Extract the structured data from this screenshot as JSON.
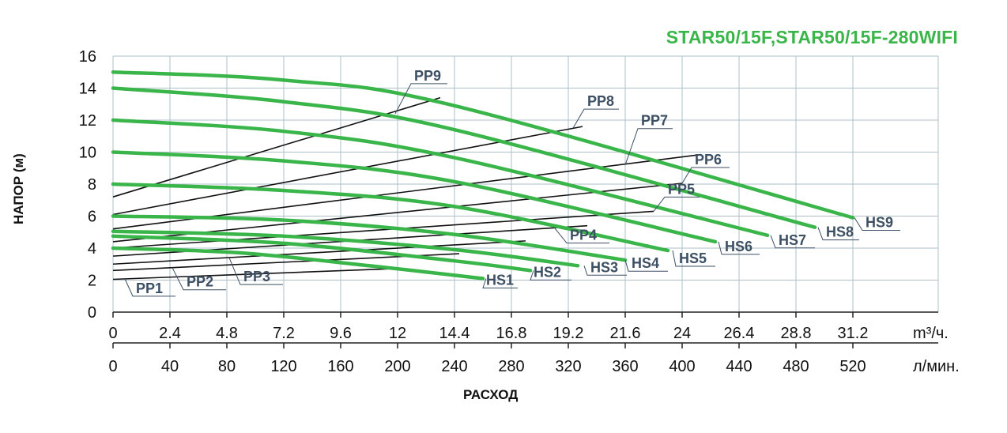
{
  "chart_data": {
    "type": "line",
    "title": "STAR50/15F,STAR50/15F-280WIFI",
    "xlabel": "РАСХОД",
    "ylabel": "НАПОР (м)",
    "x_unit_primary": "m³/ч.",
    "x_unit_secondary": "л/мин.",
    "xlim": [
      0,
      34.8
    ],
    "ylim": [
      0,
      16
    ],
    "x_ticks": [
      "0",
      "2.4",
      "4.8",
      "7.2",
      "9.6",
      "12",
      "14.4",
      "16.8",
      "19.2",
      "21.6",
      "24",
      "26.4",
      "28.8",
      "31.2"
    ],
    "x_ticks_secondary": [
      "0",
      "40",
      "80",
      "120",
      "160",
      "200",
      "240",
      "280",
      "320",
      "360",
      "400",
      "440",
      "480",
      "520"
    ],
    "y_ticks": [
      "0",
      "2",
      "4",
      "6",
      "8",
      "10",
      "12",
      "14",
      "16"
    ],
    "grid": true,
    "colors": {
      "pump_curve": "#3ab54a",
      "system_curve": "#111111",
      "label": "#3d4f63",
      "grid": "#aebfc8"
    },
    "series": [
      {
        "name": "HS1",
        "kind": "pump",
        "x": [
          0,
          5.4,
          10.8,
          15.6
        ],
        "y": [
          4.0,
          3.7,
          2.9,
          2.1
        ]
      },
      {
        "name": "HS2",
        "kind": "pump",
        "x": [
          0,
          7.2,
          14.4,
          17.6
        ],
        "y": [
          4.75,
          4.3,
          3.2,
          2.6
        ]
      },
      {
        "name": "HS3",
        "kind": "pump",
        "x": [
          0,
          7.2,
          14.4,
          19.6
        ],
        "y": [
          5.05,
          4.75,
          3.9,
          2.9
        ]
      },
      {
        "name": "HS4",
        "kind": "pump",
        "x": [
          0,
          7.2,
          14.4,
          21.6
        ],
        "y": [
          6.0,
          5.75,
          4.85,
          3.25
        ]
      },
      {
        "name": "HS5",
        "kind": "pump",
        "x": [
          0,
          7.2,
          14.4,
          23.4
        ],
        "y": [
          8.0,
          7.6,
          6.6,
          3.85
        ]
      },
      {
        "name": "HS6",
        "kind": "pump",
        "x": [
          0,
          7.2,
          14.4,
          25.4
        ],
        "y": [
          10.0,
          9.45,
          8.15,
          4.4
        ]
      },
      {
        "name": "HS7",
        "kind": "pump",
        "x": [
          0,
          7.2,
          14.4,
          27.6
        ],
        "y": [
          12.0,
          11.3,
          9.65,
          4.8
        ]
      },
      {
        "name": "HS8",
        "kind": "pump",
        "x": [
          0,
          7.2,
          14.4,
          29.6
        ],
        "y": [
          14.0,
          13.15,
          11.4,
          5.3
        ]
      },
      {
        "name": "HS9",
        "kind": "pump",
        "x": [
          0,
          7.2,
          14.4,
          31.2
        ],
        "y": [
          15.0,
          14.5,
          12.9,
          5.9
        ]
      },
      {
        "name": "PP1",
        "kind": "system",
        "x": [
          0,
          11.6
        ],
        "y": [
          2.05,
          2.7
        ]
      },
      {
        "name": "PP2",
        "kind": "system",
        "x": [
          0,
          14.6
        ],
        "y": [
          2.6,
          3.65
        ]
      },
      {
        "name": "PP3",
        "kind": "system",
        "x": [
          0,
          17.4
        ],
        "y": [
          3.0,
          4.45
        ]
      },
      {
        "name": "PP4",
        "kind": "system",
        "x": [
          0,
          20.0
        ],
        "y": [
          3.5,
          5.4
        ]
      },
      {
        "name": "PP5",
        "kind": "system",
        "x": [
          0,
          22.8
        ],
        "y": [
          4.0,
          6.3
        ]
      },
      {
        "name": "PP6",
        "kind": "system",
        "x": [
          0,
          24.0
        ],
        "y": [
          4.4,
          8.05
        ]
      },
      {
        "name": "PP7",
        "kind": "system",
        "x": [
          0,
          24.8
        ],
        "y": [
          5.2,
          9.85
        ]
      },
      {
        "name": "PP8",
        "kind": "system",
        "x": [
          0,
          19.8
        ],
        "y": [
          6.1,
          11.6
        ]
      },
      {
        "name": "PP9",
        "kind": "system",
        "x": [
          0,
          13.8
        ],
        "y": [
          7.2,
          13.4
        ]
      }
    ],
    "annotations": [
      {
        "text": "HS1",
        "target": "HS1",
        "at": [
          15.6,
          2.1
        ]
      },
      {
        "text": "HS2",
        "target": "HS2",
        "at": [
          17.6,
          2.6
        ]
      },
      {
        "text": "HS3",
        "target": "HS3",
        "at": [
          19.6,
          2.9
        ]
      },
      {
        "text": "HS4",
        "target": "HS4",
        "at": [
          21.6,
          3.25
        ]
      },
      {
        "text": "HS5",
        "target": "HS5",
        "at": [
          23.4,
          3.85
        ]
      },
      {
        "text": "HS6",
        "target": "HS6",
        "at": [
          25.4,
          4.4
        ]
      },
      {
        "text": "HS7",
        "target": "HS7",
        "at": [
          27.6,
          4.8
        ]
      },
      {
        "text": "HS8",
        "target": "HS8",
        "at": [
          29.6,
          5.3
        ]
      },
      {
        "text": "HS9",
        "target": "HS9",
        "at": [
          31.2,
          5.9
        ]
      },
      {
        "text": "PP1",
        "target": "PP1",
        "at": [
          0.5,
          2.08
        ]
      },
      {
        "text": "PP2",
        "target": "PP2",
        "at": [
          2.5,
          2.78
        ]
      },
      {
        "text": "PP3",
        "target": "PP3",
        "at": [
          4.9,
          3.4
        ]
      },
      {
        "text": "PP4",
        "target": "PP4",
        "at": [
          18.6,
          5.3
        ]
      },
      {
        "text": "PP5",
        "target": "PP5",
        "at": [
          22.8,
          6.3
        ]
      },
      {
        "text": "PP6",
        "target": "PP6",
        "at": [
          24.0,
          8.05
        ]
      },
      {
        "text": "PP7",
        "target": "PP7",
        "at": [
          21.6,
          9.2
        ]
      },
      {
        "text": "PP8",
        "target": "PP8",
        "at": [
          19.4,
          11.5
        ]
      },
      {
        "text": "PP9",
        "target": "PP9",
        "at": [
          11.9,
          12.4
        ]
      }
    ]
  }
}
